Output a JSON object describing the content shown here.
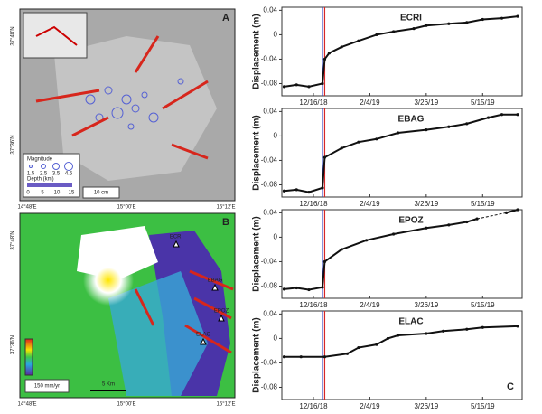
{
  "map_a": {
    "label": "A",
    "lat_labels": [
      "37°48'N",
      "37°36'N"
    ],
    "lon_labels": [
      "14°48'E",
      "15°00'E",
      "15°12'E"
    ],
    "magnitude_title": "Magnitude",
    "magnitudes": [
      "1.5",
      "2.5",
      "3.5",
      "4.5"
    ],
    "depth_title": "Depth (km)",
    "depths": [
      "0",
      "5",
      "10",
      "15"
    ],
    "arrow_scale": "10 cm"
  },
  "map_b": {
    "label": "B",
    "lat_labels": [
      "37°48'N",
      "37°36'N"
    ],
    "lon_labels": [
      "14°48'E",
      "15°00'E",
      "15°12'E"
    ],
    "stations": [
      "ECRI",
      "EBAG",
      "EPOZ",
      "ELAC"
    ],
    "velocity_scale": "150 mm/yr",
    "distance_scale": "5 Km"
  },
  "panel_c_label": "C",
  "chart_data": [
    {
      "type": "line",
      "title": "ECRI",
      "y_label": "Displacement (m)",
      "color": "#111111",
      "x": [
        "11/20/18",
        "12/1/18",
        "12/12/18",
        "12/24/18",
        "12/26/18",
        "12/30/18",
        "1/10/19",
        "1/25/19",
        "2/10/19",
        "2/25/19",
        "3/15/19",
        "3/26/19",
        "4/15/19",
        "5/1/19",
        "5/15/19",
        "6/1/19",
        "6/15/19"
      ],
      "values": [
        -0.085,
        -0.082,
        -0.085,
        -0.08,
        -0.04,
        -0.03,
        -0.02,
        -0.01,
        0,
        0.005,
        0.01,
        0.015,
        0.018,
        0.02,
        0.025,
        0.027,
        0.03
      ],
      "xlim": [
        "11/18/18",
        "6/19/19"
      ],
      "xticks": [
        "12/16/18",
        "2/4/19",
        "3/26/19",
        "5/15/19"
      ],
      "ylim": [
        -0.1,
        0.045
      ],
      "yticks": [
        0.04,
        0,
        -0.04,
        -0.08
      ],
      "events": [
        {
          "x": "12/24/18",
          "color": "#2b3fbf"
        },
        {
          "x": "12/26/18",
          "color": "#d62728"
        }
      ]
    },
    {
      "type": "line",
      "title": "EBAG",
      "y_label": "Displacement (m)",
      "color": "#111111",
      "x": [
        "11/20/18",
        "12/1/18",
        "12/12/18",
        "12/24/18",
        "12/26/18",
        "1/10/19",
        "1/25/19",
        "2/10/19",
        "3/1/19",
        "3/26/19",
        "4/15/19",
        "5/1/19",
        "5/20/19",
        "6/1/19",
        "6/15/19"
      ],
      "values": [
        -0.09,
        -0.088,
        -0.092,
        -0.085,
        -0.035,
        -0.02,
        -0.01,
        -0.005,
        0.005,
        0.01,
        0.015,
        0.02,
        0.03,
        0.035,
        0.035
      ],
      "xlim": [
        "11/18/18",
        "6/19/19"
      ],
      "xticks": [
        "12/16/18",
        "2/4/19",
        "3/26/19",
        "5/15/19"
      ],
      "ylim": [
        -0.1,
        0.045
      ],
      "yticks": [
        0.04,
        0,
        -0.04,
        -0.08
      ],
      "events": [
        {
          "x": "12/24/18",
          "color": "#2b3fbf"
        },
        {
          "x": "12/26/18",
          "color": "#d62728"
        }
      ]
    },
    {
      "type": "line",
      "title": "EPOZ",
      "y_label": "Displacement (m)",
      "color": "#111111",
      "gap_style": "dashed",
      "x": [
        "11/20/18",
        "12/1/18",
        "12/12/18",
        "12/24/18",
        "12/26/18",
        "1/10/19",
        "2/1/19",
        "2/25/19",
        "3/26/19",
        "4/15/19",
        "5/1/19",
        "5/10/19",
        "5/25/19",
        "6/5/19",
        "6/15/19"
      ],
      "values": [
        -0.085,
        -0.083,
        -0.086,
        -0.082,
        -0.04,
        -0.02,
        -0.005,
        0.005,
        0.015,
        0.02,
        0.025,
        0.03,
        null,
        0.04,
        0.045
      ],
      "xlim": [
        "11/18/18",
        "6/19/19"
      ],
      "xticks": [
        "12/16/18",
        "2/4/19",
        "3/26/19",
        "5/15/19"
      ],
      "ylim": [
        -0.1,
        0.045
      ],
      "yticks": [
        0.04,
        0,
        -0.04,
        -0.08
      ],
      "events": [
        {
          "x": "12/24/18",
          "color": "#2b3fbf"
        },
        {
          "x": "12/26/18",
          "color": "#d62728"
        }
      ]
    },
    {
      "type": "line",
      "title": "ELAC",
      "y_label": "Displacement (m)",
      "color": "#111111",
      "x": [
        "11/20/18",
        "12/5/18",
        "12/26/18",
        "1/15/19",
        "1/25/19",
        "2/10/19",
        "2/20/19",
        "3/1/19",
        "3/26/19",
        "4/10/19",
        "5/1/19",
        "5/15/19",
        "6/15/19"
      ],
      "values": [
        -0.03,
        -0.03,
        -0.03,
        -0.025,
        -0.015,
        -0.01,
        0,
        0.005,
        0.008,
        0.012,
        0.015,
        0.018,
        0.02
      ],
      "xlim": [
        "11/18/18",
        "6/19/19"
      ],
      "xticks": [
        "12/16/18",
        "2/4/19",
        "3/26/19",
        "5/15/19"
      ],
      "ylim": [
        -0.1,
        0.045
      ],
      "yticks": [
        0.04,
        0,
        -0.04,
        -0.08
      ],
      "events": [
        {
          "x": "12/24/18",
          "color": "#2b3fbf"
        },
        {
          "x": "12/26/18",
          "color": "#d62728"
        }
      ]
    }
  ]
}
